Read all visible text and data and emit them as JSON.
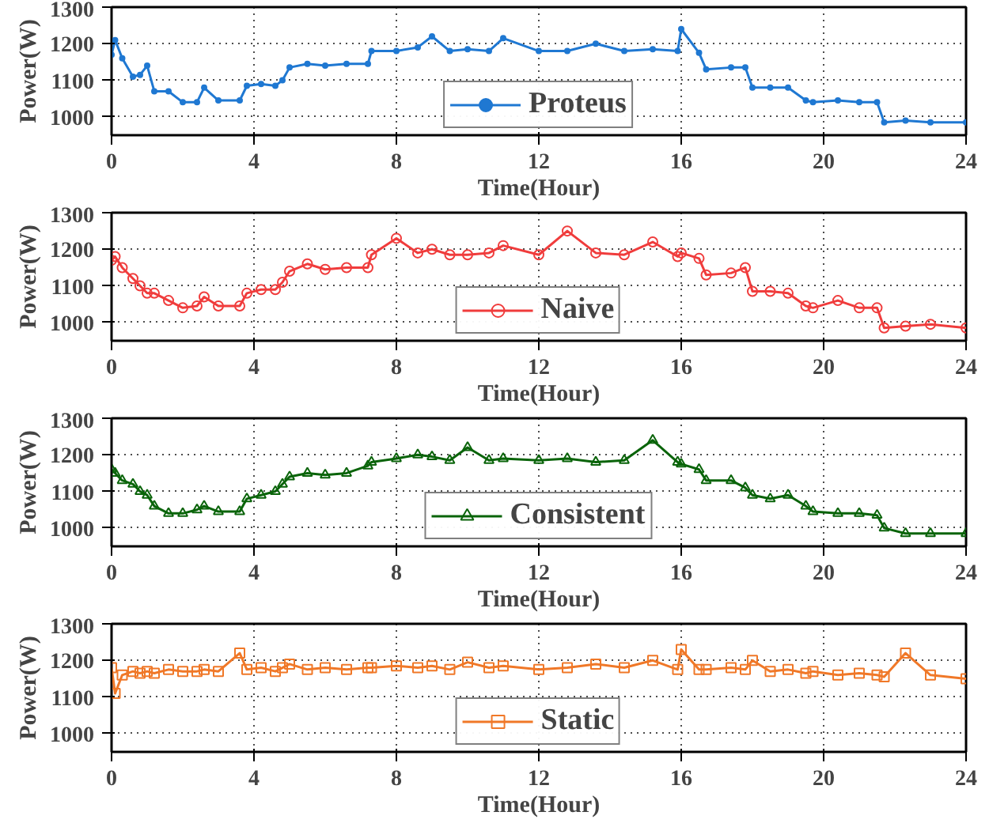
{
  "chart_data": [
    {
      "type": "line",
      "xlabel": "Time(Hour)",
      "ylabel": "Power(W)",
      "xlim": [
        0,
        24
      ],
      "xticks": [
        0,
        4,
        8,
        12,
        16,
        20,
        24
      ],
      "ylim": [
        950,
        1300
      ],
      "yticks": [
        1000,
        1100,
        1200,
        1300
      ],
      "grid": true,
      "legend": "bottom",
      "marker": "circle",
      "line_style": "solid",
      "x": [
        0,
        0.1,
        0.3,
        0.6,
        0.8,
        1.0,
        1.2,
        1.6,
        2.0,
        2.4,
        2.6,
        3.0,
        3.6,
        3.8,
        4.2,
        4.6,
        4.8,
        5.0,
        5.5,
        6.0,
        6.6,
        7.2,
        7.3,
        8.0,
        8.6,
        9.0,
        9.5,
        10.0,
        10.6,
        11.0,
        12.0,
        12.8,
        13.6,
        14.4,
        15.2,
        15.9,
        16.0,
        16.5,
        16.7,
        17.4,
        17.8,
        18.0,
        18.5,
        19.0,
        19.5,
        19.7,
        20.4,
        21.0,
        21.5,
        21.7,
        22.3,
        23.0,
        24.0
      ],
      "series": [
        {
          "name": "Proteus",
          "color": "#1f78d2",
          "values": [
            1170,
            1210,
            1160,
            1110,
            1115,
            1140,
            1070,
            1070,
            1040,
            1040,
            1080,
            1045,
            1045,
            1085,
            1090,
            1085,
            1100,
            1135,
            1145,
            1140,
            1145,
            1145,
            1180,
            1180,
            1190,
            1220,
            1180,
            1185,
            1180,
            1215,
            1180,
            1180,
            1200,
            1180,
            1185,
            1180,
            1240,
            1175,
            1130,
            1135,
            1135,
            1080,
            1080,
            1080,
            1045,
            1040,
            1045,
            1040,
            1040,
            985,
            990,
            985,
            985
          ]
        }
      ]
    },
    {
      "type": "line",
      "xlabel": "Time(Hour)",
      "ylabel": "Power(W)",
      "xlim": [
        0,
        24
      ],
      "xticks": [
        0,
        4,
        8,
        12,
        16,
        20,
        24
      ],
      "ylim": [
        950,
        1300
      ],
      "yticks": [
        1000,
        1100,
        1200,
        1300
      ],
      "grid": true,
      "legend": "bottom",
      "marker": "circle",
      "line_style": "solid",
      "x": [
        0,
        0.1,
        0.3,
        0.6,
        0.8,
        1.0,
        1.2,
        1.6,
        2.0,
        2.4,
        2.6,
        3.0,
        3.6,
        3.8,
        4.2,
        4.6,
        4.8,
        5.0,
        5.5,
        6.0,
        6.6,
        7.2,
        7.3,
        8.0,
        8.6,
        9.0,
        9.5,
        10.0,
        10.6,
        11.0,
        12.0,
        12.8,
        13.6,
        14.4,
        15.2,
        15.9,
        16.0,
        16.5,
        16.7,
        17.4,
        17.8,
        18.0,
        18.5,
        19.0,
        19.5,
        19.7,
        20.4,
        21.0,
        21.5,
        21.7,
        22.3,
        23.0,
        24.0
      ],
      "series": [
        {
          "name": "Naive",
          "color": "#f03c3c",
          "values": [
            1170,
            1180,
            1150,
            1120,
            1100,
            1080,
            1080,
            1060,
            1040,
            1045,
            1070,
            1045,
            1045,
            1080,
            1090,
            1090,
            1110,
            1140,
            1160,
            1145,
            1150,
            1150,
            1185,
            1230,
            1190,
            1200,
            1185,
            1185,
            1190,
            1210,
            1185,
            1250,
            1190,
            1185,
            1220,
            1180,
            1190,
            1175,
            1130,
            1135,
            1150,
            1085,
            1085,
            1080,
            1045,
            1040,
            1060,
            1040,
            1040,
            985,
            990,
            995,
            985
          ]
        }
      ]
    },
    {
      "type": "line",
      "xlabel": "Time(Hour)",
      "ylabel": "Power(W)",
      "xlim": [
        0,
        24
      ],
      "xticks": [
        0,
        4,
        8,
        12,
        16,
        20,
        24
      ],
      "ylim": [
        950,
        1300
      ],
      "yticks": [
        1000,
        1100,
        1200,
        1300
      ],
      "grid": true,
      "legend": "bottom",
      "marker": "triangle",
      "line_style": "solid",
      "x": [
        0,
        0.1,
        0.3,
        0.6,
        0.8,
        1.0,
        1.2,
        1.6,
        2.0,
        2.4,
        2.6,
        3.0,
        3.6,
        3.8,
        4.2,
        4.6,
        4.8,
        5.0,
        5.5,
        6.0,
        6.6,
        7.2,
        7.3,
        8.0,
        8.6,
        9.0,
        9.5,
        10.0,
        10.6,
        11.0,
        12.0,
        12.8,
        13.6,
        14.4,
        15.2,
        15.9,
        16.0,
        16.5,
        16.7,
        17.4,
        17.8,
        18.0,
        18.5,
        19.0,
        19.5,
        19.7,
        20.4,
        21.0,
        21.5,
        21.7,
        22.3,
        23.0,
        24.0
      ],
      "series": [
        {
          "name": "Consistent",
          "color": "#0a640a",
          "values": [
            1160,
            1150,
            1130,
            1120,
            1100,
            1090,
            1060,
            1040,
            1040,
            1050,
            1060,
            1045,
            1045,
            1080,
            1090,
            1100,
            1120,
            1140,
            1150,
            1145,
            1150,
            1170,
            1180,
            1190,
            1200,
            1195,
            1185,
            1220,
            1185,
            1190,
            1185,
            1190,
            1180,
            1185,
            1240,
            1180,
            1175,
            1160,
            1130,
            1130,
            1110,
            1090,
            1080,
            1090,
            1060,
            1045,
            1040,
            1040,
            1035,
            1000,
            985,
            985,
            985
          ]
        }
      ]
    },
    {
      "type": "line",
      "xlabel": "Time(Hour)",
      "ylabel": "Power(W)",
      "xlim": [
        0,
        24
      ],
      "xticks": [
        0,
        4,
        8,
        12,
        16,
        20,
        24
      ],
      "ylim": [
        950,
        1300
      ],
      "yticks": [
        1000,
        1100,
        1200,
        1300
      ],
      "grid": true,
      "legend": "bottom",
      "marker": "square",
      "line_style": "solid",
      "x": [
        0,
        0.1,
        0.3,
        0.6,
        0.8,
        1.0,
        1.2,
        1.6,
        2.0,
        2.4,
        2.6,
        3.0,
        3.6,
        3.8,
        4.2,
        4.6,
        4.8,
        5.0,
        5.5,
        6.0,
        6.6,
        7.2,
        7.3,
        8.0,
        8.6,
        9.0,
        9.5,
        10.0,
        10.6,
        11.0,
        12.0,
        12.8,
        13.6,
        14.4,
        15.2,
        15.9,
        16.0,
        16.5,
        16.7,
        17.4,
        17.8,
        18.0,
        18.5,
        19.0,
        19.5,
        19.7,
        20.4,
        21.0,
        21.5,
        21.7,
        22.3,
        23.0,
        24.0
      ],
      "series": [
        {
          "name": "Static",
          "color": "#f07828",
          "values": [
            1180,
            1110,
            1160,
            1170,
            1165,
            1170,
            1165,
            1175,
            1170,
            1170,
            1175,
            1170,
            1220,
            1175,
            1180,
            1170,
            1180,
            1190,
            1175,
            1180,
            1175,
            1180,
            1180,
            1185,
            1180,
            1185,
            1175,
            1195,
            1180,
            1185,
            1175,
            1180,
            1190,
            1180,
            1200,
            1175,
            1230,
            1175,
            1175,
            1180,
            1175,
            1200,
            1170,
            1175,
            1165,
            1170,
            1160,
            1165,
            1160,
            1155,
            1220,
            1160,
            1150
          ]
        }
      ]
    }
  ]
}
